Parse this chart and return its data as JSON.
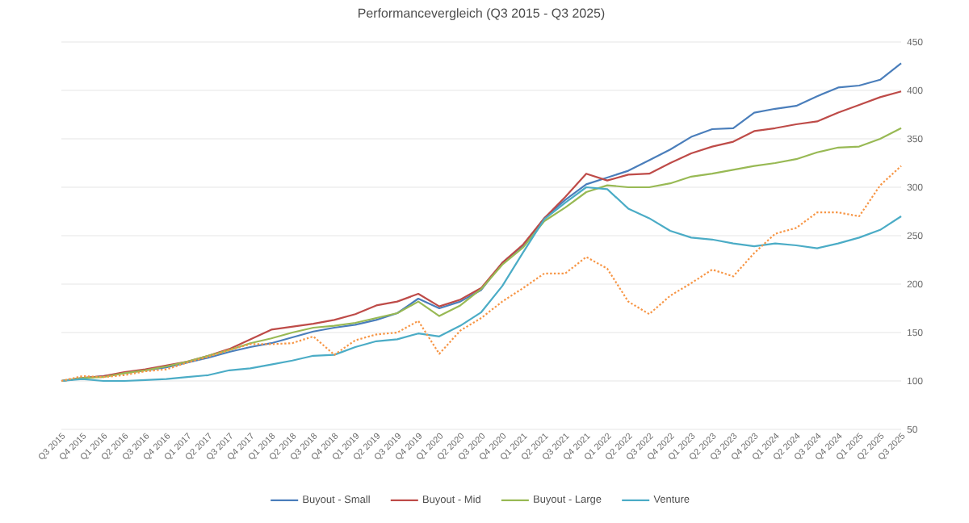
{
  "chart_data": {
    "type": "line",
    "title": "Performancevergleich (Q3 2015 - Q3 2025)",
    "categories": [
      "Q3 2015",
      "Q4 2015",
      "Q1 2016",
      "Q2 2016",
      "Q3 2016",
      "Q4 2016",
      "Q1 2017",
      "Q2 2017",
      "Q3 2017",
      "Q4 2017",
      "Q1 2018",
      "Q2 2018",
      "Q3 2018",
      "Q4 2018",
      "Q1 2019",
      "Q2 2019",
      "Q3 2019",
      "Q4 2019",
      "Q1 2020",
      "Q2 2020",
      "Q3 2020",
      "Q4 2020",
      "Q1 2021",
      "Q2 2021",
      "Q3 2021",
      "Q4 2021",
      "Q1 2022",
      "Q2 2022",
      "Q3 2022",
      "Q4 2022",
      "Q1 2023",
      "Q2 2023",
      "Q3 2023",
      "Q4 2023",
      "Q1 2024",
      "Q2 2024",
      "Q3 2024",
      "Q4 2024",
      "Q1 2025",
      "Q2 2025",
      "Q3 2025"
    ],
    "series": [
      {
        "name": "Buyout - Small",
        "color": "#4a7ebb",
        "line_style": "solid",
        "values": [
          100,
          103,
          105,
          108,
          111,
          114,
          119,
          124,
          130,
          135,
          139,
          145,
          151,
          155,
          158,
          163,
          170,
          185,
          175,
          182,
          194,
          222,
          240,
          268,
          287,
          303,
          310,
          317,
          328,
          339,
          352,
          360,
          361,
          377,
          381,
          384,
          394,
          403,
          405,
          411,
          428
        ]
      },
      {
        "name": "Buyout - Mid",
        "color": "#be4b48",
        "line_style": "solid",
        "values": [
          100,
          103,
          105,
          109,
          112,
          116,
          120,
          126,
          133,
          143,
          153,
          156,
          159,
          163,
          169,
          178,
          182,
          190,
          177,
          184,
          196,
          222,
          241,
          268,
          290,
          314,
          307,
          313,
          314,
          325,
          335,
          342,
          347,
          358,
          361,
          365,
          368,
          377,
          385,
          393,
          399
        ]
      },
      {
        "name": "Buyout - Large",
        "color": "#98b954",
        "line_style": "solid",
        "values": [
          100,
          103,
          104,
          108,
          111,
          115,
          120,
          126,
          132,
          139,
          144,
          150,
          155,
          157,
          160,
          165,
          170,
          182,
          167,
          178,
          195,
          220,
          238,
          265,
          279,
          295,
          302,
          300,
          300,
          304,
          311,
          314,
          318,
          322,
          325,
          329,
          336,
          341,
          342,
          350,
          361
        ]
      },
      {
        "name": "Venture",
        "color": "#4bacc6",
        "line_style": "solid",
        "values": [
          100,
          102,
          100,
          100,
          101,
          102,
          104,
          106,
          111,
          113,
          117,
          121,
          126,
          127,
          135,
          141,
          143,
          149,
          146,
          157,
          171,
          198,
          233,
          267,
          284,
          300,
          298,
          278,
          268,
          255,
          248,
          246,
          242,
          239,
          242,
          240,
          237,
          242,
          248,
          256,
          270
        ]
      },
      {
        "color": "#f79646",
        "line_style": "dotted",
        "values": [
          100,
          105,
          104,
          106,
          110,
          112,
          119,
          125,
          132,
          138,
          138,
          139,
          146,
          127,
          142,
          148,
          150,
          162,
          128,
          152,
          165,
          182,
          196,
          211,
          211,
          228,
          216,
          182,
          169,
          188,
          201,
          215,
          208,
          232,
          252,
          258,
          274,
          274,
          270,
          302,
          322
        ]
      }
    ],
    "ylim": [
      50,
      450
    ],
    "yticks": [
      50,
      100,
      150,
      200,
      250,
      300,
      350,
      400,
      450
    ],
    "grid": "y",
    "legend": "bottom",
    "marker": "none"
  }
}
